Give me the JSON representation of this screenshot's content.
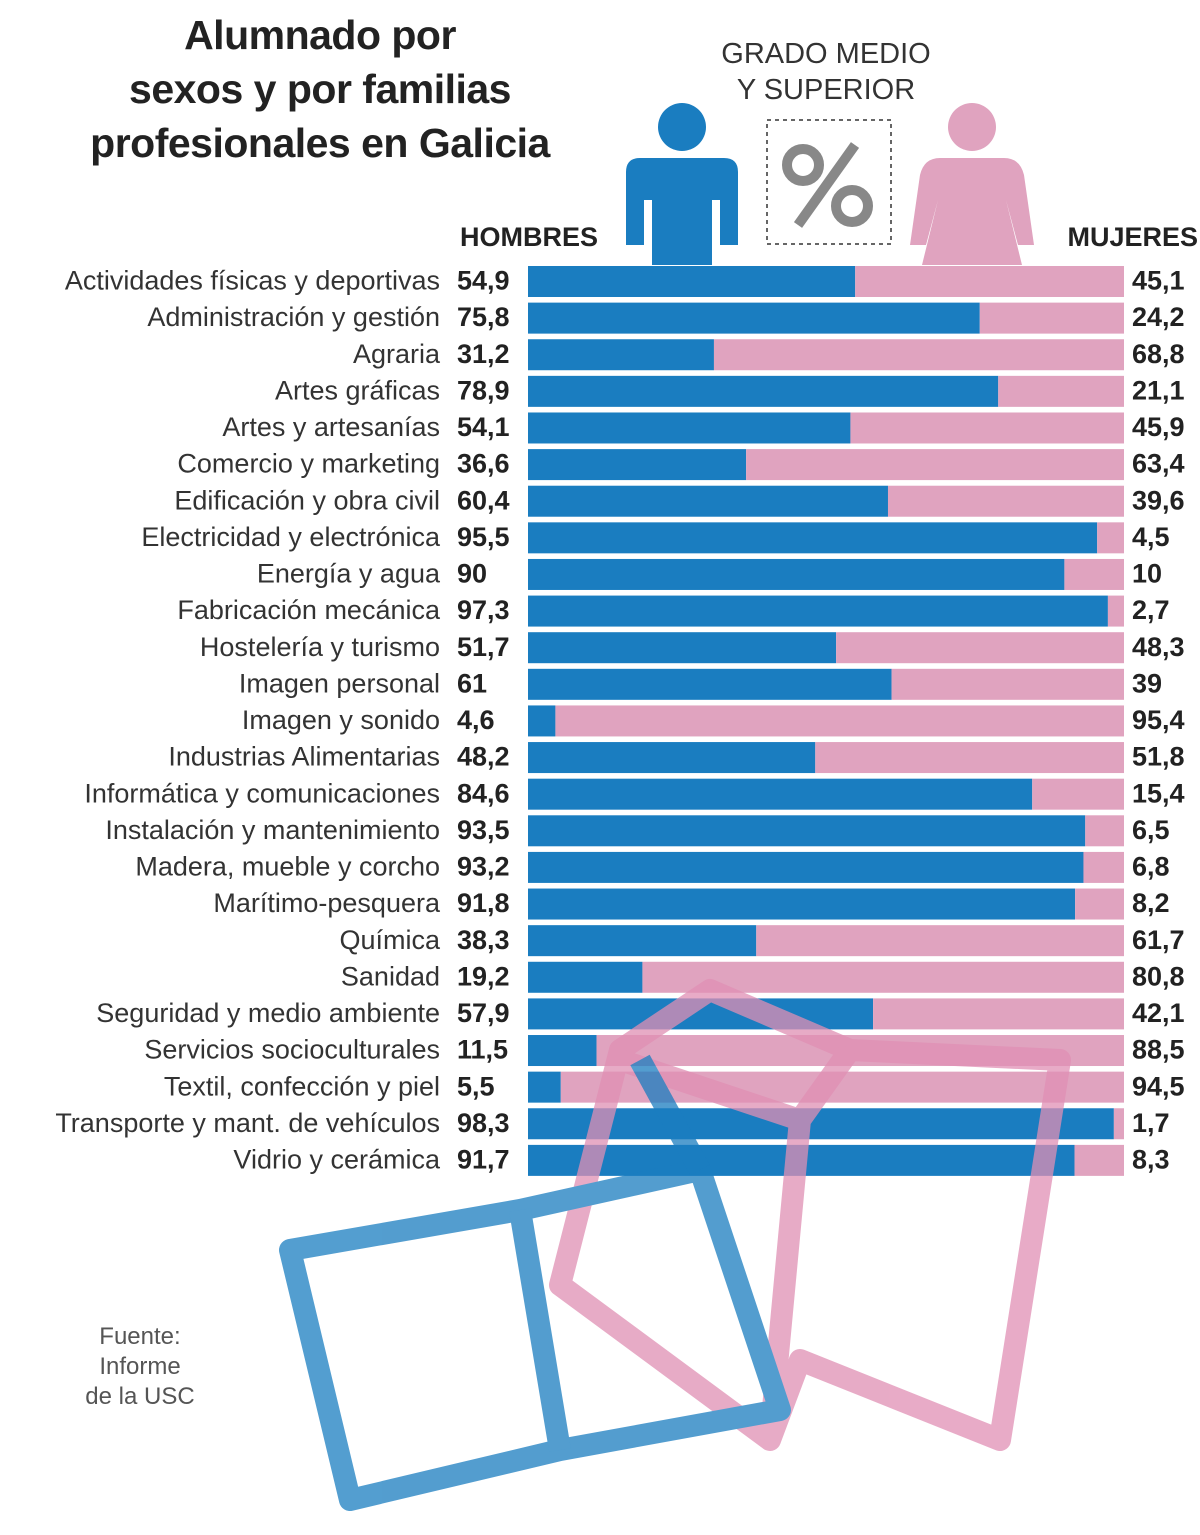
{
  "chart_data": {
    "type": "stacked_bar_100",
    "title": "Alumnado por\nsexos y por familias\nprofesionales en Galicia",
    "subtitle": "GRADO MEDIO\nY SUPERIOR",
    "source": "Fuente:\nInforme\nde la USC",
    "categories": [
      "Actividades físicas y deportivas",
      "Administración y gestión",
      "Agraria",
      "Artes gráficas",
      "Artes y artesanías",
      "Comercio y marketing",
      "Edificación y obra civil",
      "Electricidad y electrónica",
      "Energía y agua",
      "Fabricación mecánica",
      "Hostelería y turismo",
      "Imagen personal",
      "Imagen y sonido",
      "Industrias Alimentarias",
      "Informática y comunicaciones",
      "Instalación y mantenimiento",
      "Madera, mueble y corcho",
      "Marítimo-pesquera",
      "Química",
      "Sanidad",
      "Seguridad y medio ambiente",
      "Servicios socioculturales",
      "Textil, confección y piel",
      "Transporte y mant. de vehículos",
      "Vidrio y cerámica"
    ],
    "series": [
      {
        "name": "HOMBRES",
        "color": "#1a7dc0",
        "values": [
          54.9,
          75.8,
          31.2,
          78.9,
          54.1,
          36.6,
          60.4,
          95.5,
          90,
          97.3,
          51.7,
          61,
          4.6,
          48.2,
          84.6,
          93.5,
          93.2,
          91.8,
          38.3,
          19.2,
          57.9,
          11.5,
          5.5,
          98.3,
          91.7
        ],
        "value_labels": [
          "54,9",
          "75,8",
          "31,2",
          "78,9",
          "54,1",
          "36,6",
          "60,4",
          "95,5",
          "90",
          "97,3",
          "51,7",
          "61",
          "4,6",
          "48,2",
          "84,6",
          "93,5",
          "93,2",
          "91,8",
          "38,3",
          "19,2",
          "57,9",
          "11,5",
          "5,5",
          "98,3",
          "91,7"
        ]
      },
      {
        "name": "MUJERES",
        "color": "#e0a3bf",
        "values": [
          45.1,
          24.2,
          68.8,
          21.1,
          45.9,
          63.4,
          39.6,
          4.5,
          10,
          2.7,
          48.3,
          39,
          95.4,
          51.8,
          15.4,
          6.5,
          6.8,
          8.2,
          61.7,
          80.8,
          42.1,
          88.5,
          94.5,
          1.7,
          8.3
        ],
        "value_labels": [
          "45,1",
          "24,2",
          "68,8",
          "21,1",
          "45,9",
          "63,4",
          "39,6",
          "4,5",
          "10",
          "2,7",
          "48,3",
          "39",
          "95,4",
          "51,8",
          "15,4",
          "6,5",
          "6,8",
          "8,2",
          "61,7",
          "80,8",
          "42,1",
          "88,5",
          "94,5",
          "1,7",
          "8,3"
        ]
      }
    ]
  }
}
